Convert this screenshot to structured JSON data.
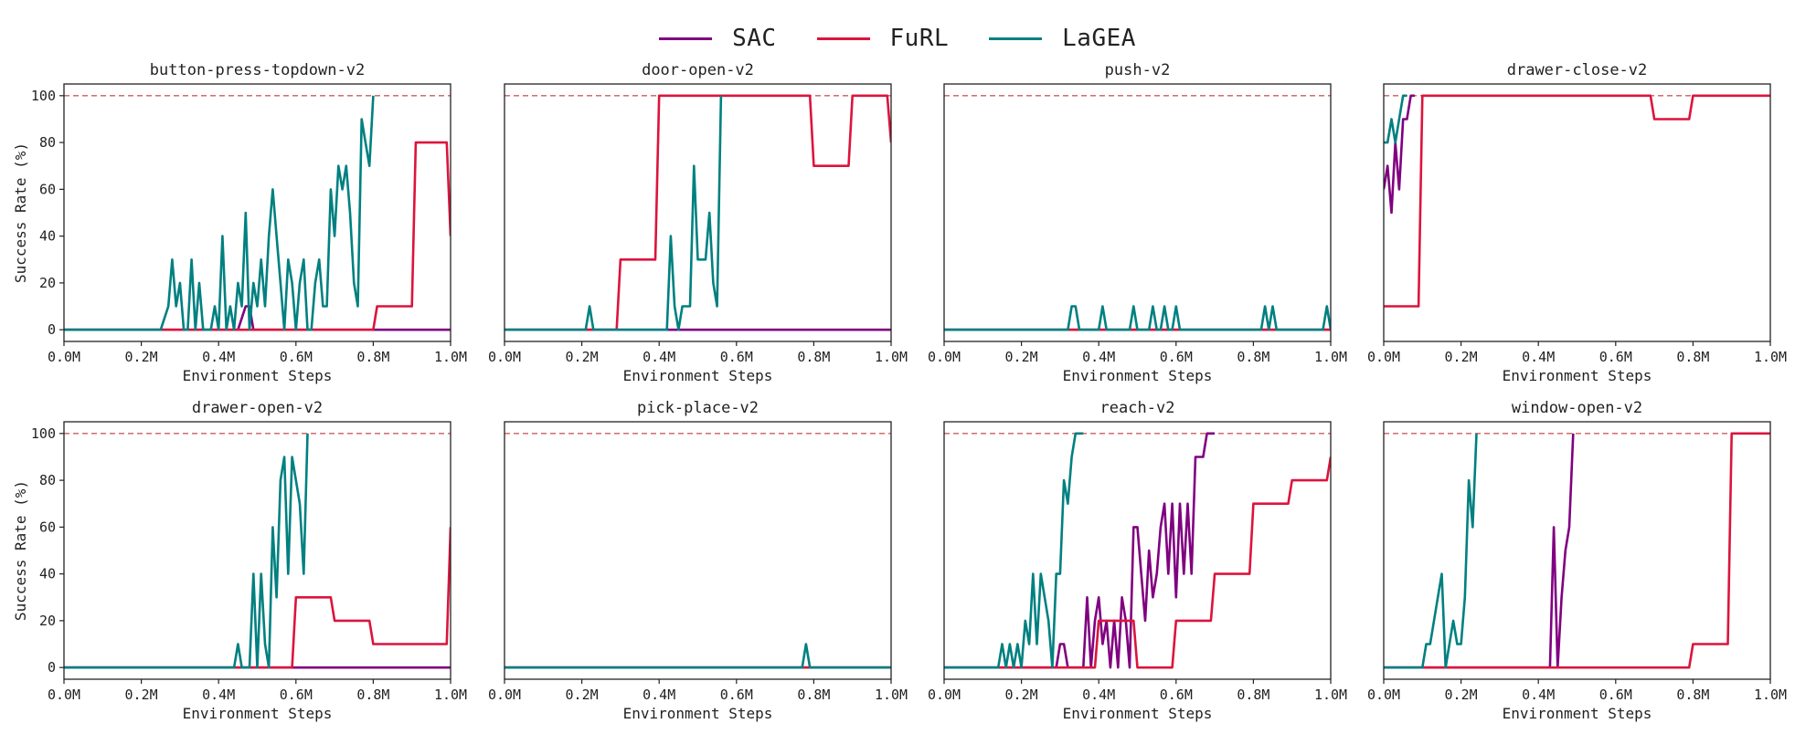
{
  "legend": [
    {
      "name": "SAC",
      "color": "#800080"
    },
    {
      "name": "FuRL",
      "color": "#dc143c"
    },
    {
      "name": "LaGEA",
      "color": "#008080"
    }
  ],
  "reference_line": {
    "value": 100,
    "style": "dashed",
    "color": "#cd5c5c"
  },
  "chart_data": [
    {
      "type": "line",
      "title": "button-press-topdown-v2",
      "xlabel": "Environment Steps",
      "ylabel": "Success Rate (%)",
      "x_ticks": [
        "0.0M",
        "0.2M",
        "0.4M",
        "0.6M",
        "0.8M",
        "1.0M"
      ],
      "y_ticks": [
        "0",
        "20",
        "40",
        "60",
        "80",
        "100"
      ],
      "xlim": [
        0,
        1.0
      ],
      "ylim": [
        -5,
        105
      ],
      "series": [
        {
          "name": "SAC",
          "x": [
            0,
            0.45,
            0.47,
            0.48,
            0.49,
            1.0
          ],
          "y": [
            0,
            0,
            10,
            10,
            0,
            0
          ]
        },
        {
          "name": "FuRL",
          "x": [
            0,
            0.8,
            0.81,
            0.9,
            0.91,
            0.99,
            1.0
          ],
          "y": [
            0,
            0,
            10,
            10,
            80,
            80,
            40
          ]
        },
        {
          "name": "LaGEA",
          "x": [
            0,
            0.25,
            0.27,
            0.28,
            0.29,
            0.3,
            0.31,
            0.32,
            0.33,
            0.34,
            0.35,
            0.36,
            0.37,
            0.38,
            0.39,
            0.4,
            0.41,
            0.42,
            0.43,
            0.44,
            0.45,
            0.46,
            0.47,
            0.48,
            0.49,
            0.5,
            0.51,
            0.52,
            0.53,
            0.54,
            0.55,
            0.56,
            0.57,
            0.58,
            0.59,
            0.6,
            0.61,
            0.62,
            0.63,
            0.64,
            0.65,
            0.66,
            0.67,
            0.68,
            0.69,
            0.7,
            0.71,
            0.72,
            0.73,
            0.74,
            0.75,
            0.76,
            0.77,
            0.78,
            0.79,
            0.8
          ],
          "y": [
            0,
            0,
            10,
            30,
            10,
            20,
            0,
            0,
            30,
            0,
            20,
            0,
            0,
            0,
            10,
            0,
            40,
            0,
            10,
            0,
            20,
            10,
            50,
            0,
            20,
            10,
            30,
            10,
            40,
            60,
            40,
            20,
            0,
            30,
            20,
            0,
            20,
            30,
            0,
            0,
            20,
            30,
            10,
            10,
            60,
            40,
            70,
            60,
            70,
            50,
            20,
            10,
            90,
            80,
            70,
            100
          ]
        }
      ]
    },
    {
      "type": "line",
      "title": "door-open-v2",
      "xlabel": "Environment Steps",
      "ylabel": "",
      "x_ticks": [
        "0.0M",
        "0.2M",
        "0.4M",
        "0.6M",
        "0.8M",
        "1.0M"
      ],
      "y_ticks": [],
      "xlim": [
        0,
        1.0
      ],
      "ylim": [
        -5,
        105
      ],
      "series": [
        {
          "name": "SAC",
          "x": [
            0,
            1.0
          ],
          "y": [
            0,
            0
          ]
        },
        {
          "name": "FuRL",
          "x": [
            0,
            0.29,
            0.3,
            0.39,
            0.4,
            0.79,
            0.8,
            0.89,
            0.9,
            0.99,
            1.0
          ],
          "y": [
            0,
            0,
            30,
            30,
            100,
            100,
            70,
            70,
            100,
            100,
            80
          ]
        },
        {
          "name": "LaGEA",
          "x": [
            0,
            0.21,
            0.22,
            0.23,
            0.42,
            0.43,
            0.44,
            0.45,
            0.46,
            0.47,
            0.48,
            0.49,
            0.5,
            0.51,
            0.52,
            0.53,
            0.54,
            0.55,
            0.56
          ],
          "y": [
            0,
            0,
            10,
            0,
            0,
            40,
            10,
            0,
            10,
            10,
            10,
            70,
            30,
            30,
            30,
            50,
            20,
            10,
            100
          ]
        }
      ]
    },
    {
      "type": "line",
      "title": "push-v2",
      "xlabel": "Environment Steps",
      "ylabel": "",
      "x_ticks": [
        "0.0M",
        "0.2M",
        "0.4M",
        "0.6M",
        "0.8M",
        "1.0M"
      ],
      "y_ticks": [],
      "xlim": [
        0,
        1.0
      ],
      "ylim": [
        -5,
        105
      ],
      "series": [
        {
          "name": "SAC",
          "x": [
            0,
            1.0
          ],
          "y": [
            0,
            0
          ]
        },
        {
          "name": "FuRL",
          "x": [
            0,
            1.0
          ],
          "y": [
            0,
            0
          ]
        },
        {
          "name": "LaGEA",
          "x": [
            0,
            0.32,
            0.33,
            0.34,
            0.35,
            0.4,
            0.41,
            0.42,
            0.48,
            0.49,
            0.5,
            0.53,
            0.54,
            0.55,
            0.56,
            0.57,
            0.58,
            0.59,
            0.6,
            0.61,
            0.82,
            0.83,
            0.84,
            0.85,
            0.86,
            0.98,
            0.99,
            1.0
          ],
          "y": [
            0,
            0,
            10,
            10,
            0,
            0,
            10,
            0,
            0,
            10,
            0,
            0,
            10,
            0,
            0,
            10,
            0,
            0,
            10,
            0,
            0,
            10,
            0,
            10,
            0,
            0,
            10,
            0
          ]
        }
      ]
    },
    {
      "type": "line",
      "title": "drawer-close-v2",
      "xlabel": "Environment Steps",
      "ylabel": "",
      "x_ticks": [
        "0.0M",
        "0.2M",
        "0.4M",
        "0.6M",
        "0.8M",
        "1.0M"
      ],
      "y_ticks": [],
      "xlim": [
        0,
        1.0
      ],
      "ylim": [
        -5,
        105
      ],
      "series": [
        {
          "name": "SAC",
          "x": [
            0,
            0.01,
            0.02,
            0.03,
            0.04,
            0.05,
            0.06,
            0.07,
            0.08
          ],
          "y": [
            60,
            70,
            50,
            80,
            60,
            90,
            90,
            100,
            100
          ]
        },
        {
          "name": "FuRL",
          "x": [
            0,
            0.09,
            0.1,
            0.69,
            0.7,
            0.79,
            0.8,
            1.0
          ],
          "y": [
            10,
            10,
            100,
            100,
            90,
            90,
            100,
            100
          ]
        },
        {
          "name": "LaGEA",
          "x": [
            0,
            0.01,
            0.02,
            0.03,
            0.04,
            0.05,
            0.06
          ],
          "y": [
            80,
            80,
            90,
            80,
            90,
            100,
            100
          ]
        }
      ]
    },
    {
      "type": "line",
      "title": "drawer-open-v2",
      "xlabel": "Environment Steps",
      "ylabel": "Success Rate (%)",
      "x_ticks": [
        "0.0M",
        "0.2M",
        "0.4M",
        "0.6M",
        "0.8M",
        "1.0M"
      ],
      "y_ticks": [
        "0",
        "20",
        "40",
        "60",
        "80",
        "100"
      ],
      "xlim": [
        0,
        1.0
      ],
      "ylim": [
        -5,
        105
      ],
      "series": [
        {
          "name": "SAC",
          "x": [
            0,
            1.0
          ],
          "y": [
            0,
            0
          ]
        },
        {
          "name": "FuRL",
          "x": [
            0,
            0.59,
            0.6,
            0.69,
            0.7,
            0.79,
            0.8,
            0.99,
            1.0
          ],
          "y": [
            0,
            0,
            30,
            30,
            20,
            20,
            10,
            10,
            60
          ]
        },
        {
          "name": "LaGEA",
          "x": [
            0,
            0.44,
            0.45,
            0.46,
            0.48,
            0.49,
            0.5,
            0.51,
            0.52,
            0.53,
            0.54,
            0.55,
            0.56,
            0.57,
            0.58,
            0.59,
            0.6,
            0.61,
            0.62,
            0.63
          ],
          "y": [
            0,
            0,
            10,
            0,
            0,
            40,
            0,
            40,
            10,
            0,
            60,
            30,
            80,
            90,
            40,
            90,
            80,
            70,
            40,
            100
          ]
        }
      ]
    },
    {
      "type": "line",
      "title": "pick-place-v2",
      "xlabel": "Environment Steps",
      "ylabel": "",
      "x_ticks": [
        "0.0M",
        "0.2M",
        "0.4M",
        "0.6M",
        "0.8M",
        "1.0M"
      ],
      "y_ticks": [],
      "xlim": [
        0,
        1.0
      ],
      "ylim": [
        -5,
        105
      ],
      "series": [
        {
          "name": "SAC",
          "x": [
            0,
            1.0
          ],
          "y": [
            0,
            0
          ]
        },
        {
          "name": "FuRL",
          "x": [
            0,
            1.0
          ],
          "y": [
            0,
            0
          ]
        },
        {
          "name": "LaGEA",
          "x": [
            0,
            0.77,
            0.78,
            0.79,
            1.0
          ],
          "y": [
            0,
            0,
            10,
            0,
            0
          ]
        }
      ]
    },
    {
      "type": "line",
      "title": "reach-v2",
      "xlabel": "Environment Steps",
      "ylabel": "",
      "x_ticks": [
        "0.0M",
        "0.2M",
        "0.4M",
        "0.6M",
        "0.8M",
        "1.0M"
      ],
      "y_ticks": [],
      "xlim": [
        0,
        1.0
      ],
      "ylim": [
        -5,
        105
      ],
      "series": [
        {
          "name": "SAC",
          "x": [
            0,
            0.29,
            0.3,
            0.31,
            0.32,
            0.36,
            0.37,
            0.38,
            0.39,
            0.4,
            0.41,
            0.42,
            0.43,
            0.44,
            0.45,
            0.46,
            0.47,
            0.48,
            0.49,
            0.5,
            0.51,
            0.52,
            0.53,
            0.54,
            0.55,
            0.56,
            0.57,
            0.58,
            0.59,
            0.6,
            0.61,
            0.62,
            0.63,
            0.64,
            0.65,
            0.66,
            0.67,
            0.68,
            0.69,
            0.7
          ],
          "y": [
            0,
            0,
            10,
            10,
            0,
            0,
            30,
            0,
            20,
            30,
            10,
            20,
            0,
            20,
            0,
            30,
            20,
            0,
            60,
            60,
            40,
            20,
            50,
            30,
            40,
            60,
            70,
            40,
            70,
            30,
            70,
            40,
            70,
            40,
            90,
            90,
            90,
            100,
            100,
            100
          ]
        },
        {
          "name": "FuRL",
          "x": [
            0,
            0.39,
            0.4,
            0.49,
            0.5,
            0.59,
            0.6,
            0.69,
            0.7,
            0.79,
            0.8,
            0.89,
            0.9,
            0.99,
            1.0
          ],
          "y": [
            0,
            0,
            20,
            20,
            0,
            0,
            20,
            20,
            40,
            40,
            70,
            70,
            80,
            80,
            90
          ]
        },
        {
          "name": "LaGEA",
          "x": [
            0,
            0.14,
            0.15,
            0.16,
            0.17,
            0.18,
            0.19,
            0.2,
            0.21,
            0.22,
            0.23,
            0.24,
            0.25,
            0.26,
            0.27,
            0.28,
            0.29,
            0.3,
            0.31,
            0.32,
            0.33,
            0.34,
            0.35,
            0.36
          ],
          "y": [
            0,
            0,
            10,
            0,
            10,
            0,
            10,
            0,
            20,
            10,
            40,
            10,
            40,
            30,
            20,
            0,
            40,
            40,
            80,
            70,
            90,
            100,
            100,
            100
          ]
        }
      ]
    },
    {
      "type": "line",
      "title": "window-open-v2",
      "xlabel": "Environment Steps",
      "ylabel": "",
      "x_ticks": [
        "0.0M",
        "0.2M",
        "0.4M",
        "0.6M",
        "0.8M",
        "1.0M"
      ],
      "y_ticks": [],
      "xlim": [
        0,
        1.0
      ],
      "ylim": [
        -5,
        105
      ],
      "series": [
        {
          "name": "SAC",
          "x": [
            0,
            0.43,
            0.44,
            0.45,
            0.46,
            0.47,
            0.48,
            0.49
          ],
          "y": [
            0,
            0,
            60,
            0,
            30,
            50,
            60,
            100
          ]
        },
        {
          "name": "FuRL",
          "x": [
            0,
            0.79,
            0.8,
            0.89,
            0.9,
            1.0
          ],
          "y": [
            0,
            0,
            10,
            10,
            100,
            100
          ]
        },
        {
          "name": "LaGEA",
          "x": [
            0,
            0.1,
            0.11,
            0.12,
            0.13,
            0.14,
            0.15,
            0.16,
            0.17,
            0.18,
            0.19,
            0.2,
            0.21,
            0.22,
            0.23,
            0.24
          ],
          "y": [
            0,
            0,
            10,
            10,
            20,
            30,
            40,
            0,
            10,
            20,
            10,
            10,
            30,
            80,
            60,
            100
          ]
        }
      ]
    }
  ]
}
